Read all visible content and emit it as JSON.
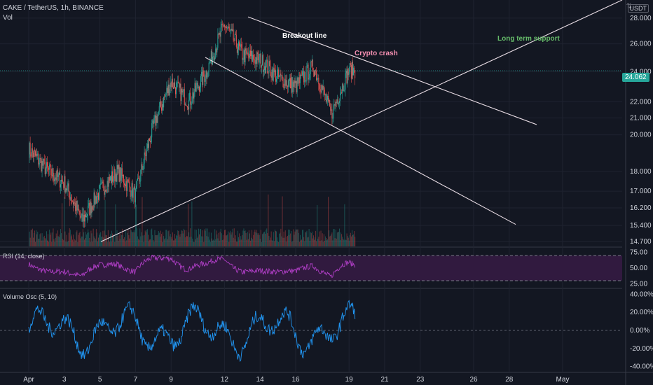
{
  "header": {
    "title": "CAKE / TetherUS, 1h, BINANCE",
    "volume_label": "Vol",
    "currency": "USDT",
    "settings_icon": "adjust-icon"
  },
  "annotations": {
    "breakout": "Breakout line",
    "crash": "Crypto crash",
    "support": "Long term support"
  },
  "colors": {
    "background": "#131722",
    "bullish": "#26a69a",
    "bearish": "#ef5350",
    "trendline": "#e8dce4",
    "rsi": "#b03ec6",
    "rsi_band": "#311a3f",
    "volosc": "#2196f3",
    "crash_text": "#f48fb1",
    "support_text": "#66bb6a"
  },
  "chart_data": [
    {
      "type": "candlestick",
      "title": "CAKE / TetherUS, 1h, BINANCE",
      "y_scale": "log",
      "ylim": [
        14.5,
        29.5
      ],
      "y_ticks": [
        "28.000",
        "26.000",
        "24.000",
        "22.000",
        "21.000",
        "20.000",
        "18.000",
        "17.000",
        "16.200",
        "15.400",
        "14.700"
      ],
      "last_price": "24.062",
      "x_ticks": [
        "Apr",
        "3",
        "5",
        "7",
        "9",
        "12",
        "14",
        "16",
        "19",
        "21",
        "23",
        "26",
        "28",
        "May"
      ],
      "price_path": [
        {
          "date": "Apr 1",
          "price": 19.2
        },
        {
          "date": "Apr 2",
          "price": 18.1
        },
        {
          "date": "Apr 3",
          "price": 17.4
        },
        {
          "date": "Apr 4",
          "price": 15.6
        },
        {
          "date": "Apr 5",
          "price": 17.0
        },
        {
          "date": "Apr 6",
          "price": 18.0
        },
        {
          "date": "Apr 7",
          "price": 16.8
        },
        {
          "date": "Apr 8",
          "price": 20.5
        },
        {
          "date": "Apr 9",
          "price": 23.3
        },
        {
          "date": "Apr 10",
          "price": 22.0
        },
        {
          "date": "Apr 11",
          "price": 24.0
        },
        {
          "date": "Apr 12",
          "price": 27.5
        },
        {
          "date": "Apr 13",
          "price": 25.2
        },
        {
          "date": "Apr 14",
          "price": 24.8
        },
        {
          "date": "Apr 15",
          "price": 23.6
        },
        {
          "date": "Apr 16",
          "price": 23.0
        },
        {
          "date": "Apr 17",
          "price": 24.4
        },
        {
          "date": "Apr 18",
          "price": 21.2
        },
        {
          "date": "Apr 19",
          "price": 24.1
        }
      ],
      "volume": {
        "label": "Vol"
      }
    },
    {
      "type": "line",
      "name": "RSI (14, close)",
      "y_ticks": [
        "75.00",
        "50.00",
        "25.00"
      ],
      "ylim": [
        20,
        80
      ],
      "band": [
        30,
        70
      ]
    },
    {
      "type": "line",
      "name": "Volume Osc (5, 10)",
      "y_ticks": [
        "40.00%",
        "20.00%",
        "0.00%",
        "-20.00%",
        "-40.00%"
      ],
      "ylim": [
        -45,
        45
      ]
    }
  ]
}
